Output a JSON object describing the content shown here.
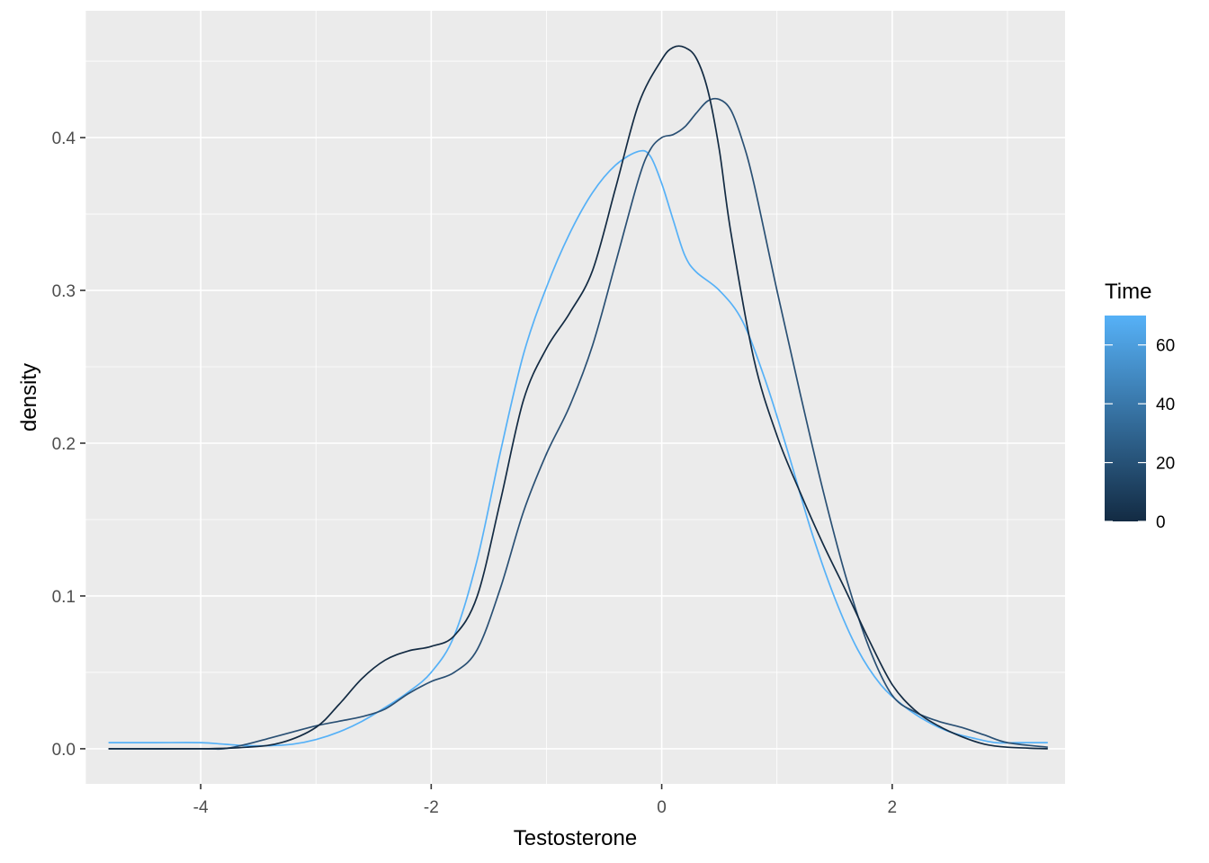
{
  "chart_data": {
    "type": "line",
    "title": "",
    "xlabel": "Testosterone",
    "ylabel": "density",
    "xlim": [
      -5.0,
      3.5
    ],
    "ylim": [
      -0.023,
      0.483
    ],
    "x_ticks": [
      -4,
      -2,
      0,
      2
    ],
    "x_tick_labels": [
      "-4",
      "-2",
      "0",
      "2"
    ],
    "y_ticks": [
      0.0,
      0.1,
      0.2,
      0.3,
      0.4
    ],
    "y_tick_labels": [
      "0.0",
      "0.1",
      "0.2",
      "0.3",
      "0.4"
    ],
    "grid": true,
    "panel_background": "#ebebeb",
    "grid_color": "#ffffff",
    "legend": {
      "title": "Time",
      "placement": "right",
      "type": "colorbar",
      "range": [
        0,
        70
      ],
      "breaks": [
        0,
        20,
        40,
        60
      ],
      "break_labels": [
        "0",
        "20",
        "40",
        "60"
      ],
      "color_low": "#132b43",
      "color_high": "#56b1f7"
    },
    "series": [
      {
        "time": 0,
        "color": "#132b43",
        "x": [
          -4.8,
          -4.0,
          -3.6,
          -3.3,
          -3.0,
          -2.8,
          -2.6,
          -2.4,
          -2.2,
          -2.0,
          -1.8,
          -1.6,
          -1.4,
          -1.2,
          -1.0,
          -0.8,
          -0.6,
          -0.4,
          -0.2,
          0.0,
          0.1,
          0.2,
          0.3,
          0.4,
          0.5,
          0.6,
          0.8,
          1.0,
          1.2,
          1.4,
          1.6,
          1.8,
          2.0,
          2.2,
          2.4,
          2.6,
          2.8,
          3.0,
          3.35
        ],
        "values": [
          0.0,
          0.0,
          0.001,
          0.004,
          0.014,
          0.029,
          0.046,
          0.058,
          0.064,
          0.067,
          0.074,
          0.1,
          0.162,
          0.228,
          0.262,
          0.285,
          0.313,
          0.367,
          0.422,
          0.451,
          0.459,
          0.459,
          0.452,
          0.431,
          0.392,
          0.338,
          0.255,
          0.205,
          0.168,
          0.134,
          0.103,
          0.071,
          0.042,
          0.025,
          0.015,
          0.008,
          0.003,
          0.001,
          0.0
        ]
      },
      {
        "time": 35,
        "color": "#2a5074",
        "x": [
          -4.8,
          -4.0,
          -3.8,
          -3.6,
          -3.4,
          -3.2,
          -3.0,
          -2.8,
          -2.6,
          -2.4,
          -2.2,
          -2.0,
          -1.8,
          -1.6,
          -1.4,
          -1.2,
          -1.0,
          -0.8,
          -0.6,
          -0.4,
          -0.2,
          -0.1,
          0.0,
          0.1,
          0.2,
          0.3,
          0.4,
          0.5,
          0.6,
          0.7,
          0.8,
          1.0,
          1.2,
          1.4,
          1.6,
          1.8,
          2.0,
          2.2,
          2.4,
          2.6,
          2.8,
          3.0,
          3.35
        ],
        "values": [
          0.0,
          0.0,
          0.0,
          0.003,
          0.007,
          0.011,
          0.015,
          0.018,
          0.021,
          0.026,
          0.036,
          0.044,
          0.05,
          0.065,
          0.105,
          0.155,
          0.193,
          0.224,
          0.264,
          0.318,
          0.373,
          0.392,
          0.4,
          0.402,
          0.407,
          0.416,
          0.424,
          0.425,
          0.418,
          0.398,
          0.37,
          0.3,
          0.233,
          0.169,
          0.112,
          0.066,
          0.035,
          0.024,
          0.018,
          0.014,
          0.009,
          0.004,
          0.001
        ]
      },
      {
        "time": 70,
        "color": "#56b1f7",
        "x": [
          -4.8,
          -4.4,
          -4.0,
          -3.8,
          -3.6,
          -3.4,
          -3.2,
          -3.0,
          -2.8,
          -2.6,
          -2.4,
          -2.2,
          -2.0,
          -1.8,
          -1.6,
          -1.4,
          -1.2,
          -1.0,
          -0.8,
          -0.6,
          -0.4,
          -0.2,
          -0.1,
          0.0,
          0.1,
          0.2,
          0.3,
          0.5,
          0.7,
          0.9,
          1.1,
          1.3,
          1.5,
          1.7,
          1.9,
          2.1,
          2.3,
          2.5,
          2.7,
          2.9,
          3.1,
          3.35
        ],
        "values": [
          0.004,
          0.004,
          0.004,
          0.003,
          0.002,
          0.002,
          0.003,
          0.006,
          0.011,
          0.018,
          0.027,
          0.037,
          0.05,
          0.074,
          0.124,
          0.194,
          0.258,
          0.302,
          0.337,
          0.364,
          0.382,
          0.391,
          0.388,
          0.37,
          0.346,
          0.323,
          0.312,
          0.3,
          0.28,
          0.241,
          0.193,
          0.142,
          0.099,
          0.065,
          0.042,
          0.028,
          0.018,
          0.011,
          0.007,
          0.004,
          0.004,
          0.004
        ]
      }
    ]
  }
}
